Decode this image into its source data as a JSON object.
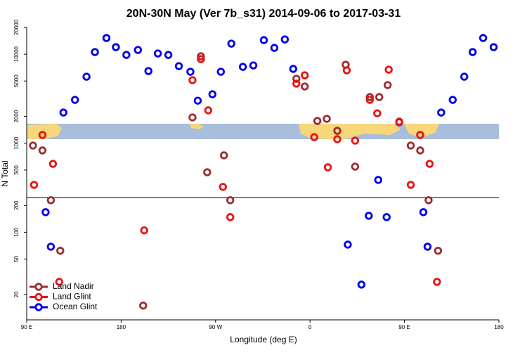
{
  "chart_data": {
    "type": "scatter",
    "title": "20N-30N May (Ver 7b_s31)   2014-09-06 to 2017-03-31",
    "x_label": "Longitude (deg E)",
    "y_label": "N Total",
    "log_y": true,
    "legend": "lower left",
    "xlim": [
      90,
      540
    ],
    "xticks": [
      {
        "value": 90,
        "label": "90 E"
      },
      {
        "value": 180,
        "label": "180"
      },
      {
        "value": 270,
        "label": "90 W"
      },
      {
        "value": 360,
        "label": "0"
      },
      {
        "value": 450,
        "label": "90 E"
      },
      {
        "value": 540,
        "label": "180"
      }
    ],
    "ylim": [
      10,
      20000
    ],
    "yticks": [
      20,
      50,
      100,
      200,
      500,
      1000,
      2000,
      5000,
      10000,
      20000
    ],
    "series": [
      {
        "name": "Land Nadir",
        "color": "#9b2d30",
        "x": [
          96,
          105,
          113,
          122,
          201,
          248,
          256,
          262,
          278,
          284,
          347,
          355,
          367,
          376,
          386,
          394,
          403,
          417,
          426,
          434,
          445,
          456,
          465,
          473,
          482
        ],
        "values": [
          942,
          830,
          229,
          62,
          15,
          1950,
          9480,
          472,
          731,
          229,
          5300,
          4340,
          1780,
          1880,
          1380,
          7620,
          546,
          3300,
          3300,
          4500,
          1720,
          942,
          830,
          229,
          62
        ]
      },
      {
        "name": "Land Glint",
        "color": "#ee1111",
        "x": [
          97,
          105,
          115,
          121,
          202,
          248,
          256,
          263,
          277,
          284,
          347,
          355,
          364,
          377,
          386,
          395,
          403,
          417,
          424,
          435,
          445,
          456,
          465,
          474,
          481
        ],
        "values": [
          341,
          1240,
          587,
          27.7,
          105,
          5110,
          8810,
          2340,
          323,
          148,
          4670,
          5800,
          1170,
          537,
          1110,
          6590,
          1070,
          3070,
          2170,
          6710,
          1750,
          341,
          1240,
          587,
          27.7
        ]
      },
      {
        "name": "Ocean Glint",
        "color": "#0000ee",
        "x": [
          108,
          113,
          125,
          136,
          147,
          155,
          166,
          175,
          185,
          196,
          206,
          215,
          225,
          235,
          246,
          253,
          267,
          275,
          285,
          296,
          306,
          316,
          326,
          336,
          344,
          396,
          409,
          416,
          425,
          433,
          468,
          472,
          485,
          496,
          507,
          515,
          525,
          535
        ],
        "values": [
          168,
          68.8,
          2210,
          3070,
          5590,
          10570,
          15200,
          12000,
          9820,
          11160,
          6470,
          10190,
          9820,
          7350,
          6350,
          3010,
          3550,
          6350,
          13150,
          7210,
          7480,
          14390,
          11780,
          14660,
          6840,
          72.6,
          25.8,
          153,
          387,
          148,
          168,
          68.8,
          2210,
          3070,
          5590,
          10570,
          15200,
          12000
        ]
      }
    ]
  }
}
